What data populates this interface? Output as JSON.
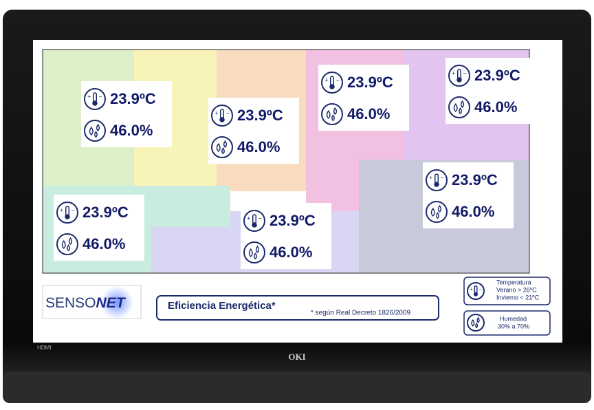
{
  "sensors": [
    {
      "temperature": "23.9ºC",
      "humidity": "46.0%"
    },
    {
      "temperature": "23.9ºC",
      "humidity": "46.0%"
    },
    {
      "temperature": "23.9ºC",
      "humidity": "46.0%"
    },
    {
      "temperature": "23.9ºC",
      "humidity": "46.0%"
    },
    {
      "temperature": "23.9ºC",
      "humidity": "46.0%"
    },
    {
      "temperature": "23.9ºC",
      "humidity": "46.0%"
    },
    {
      "temperature": "23.9ºC",
      "humidity": "46.0%"
    }
  ],
  "logo": {
    "part1": "SENSO",
    "part2": "NET"
  },
  "title": "Eficiencia Energética*",
  "note": "* según Real Decreto 1826/2009",
  "legend": {
    "temperature": {
      "title": "Temperatura",
      "summer": "Verano > 26ºC",
      "winter": "Invierno < 21ºC"
    },
    "humidity": {
      "title": "Humedad",
      "range": "30% a 70%"
    }
  },
  "tv": {
    "brand": "OKI",
    "input": "HDMI"
  }
}
